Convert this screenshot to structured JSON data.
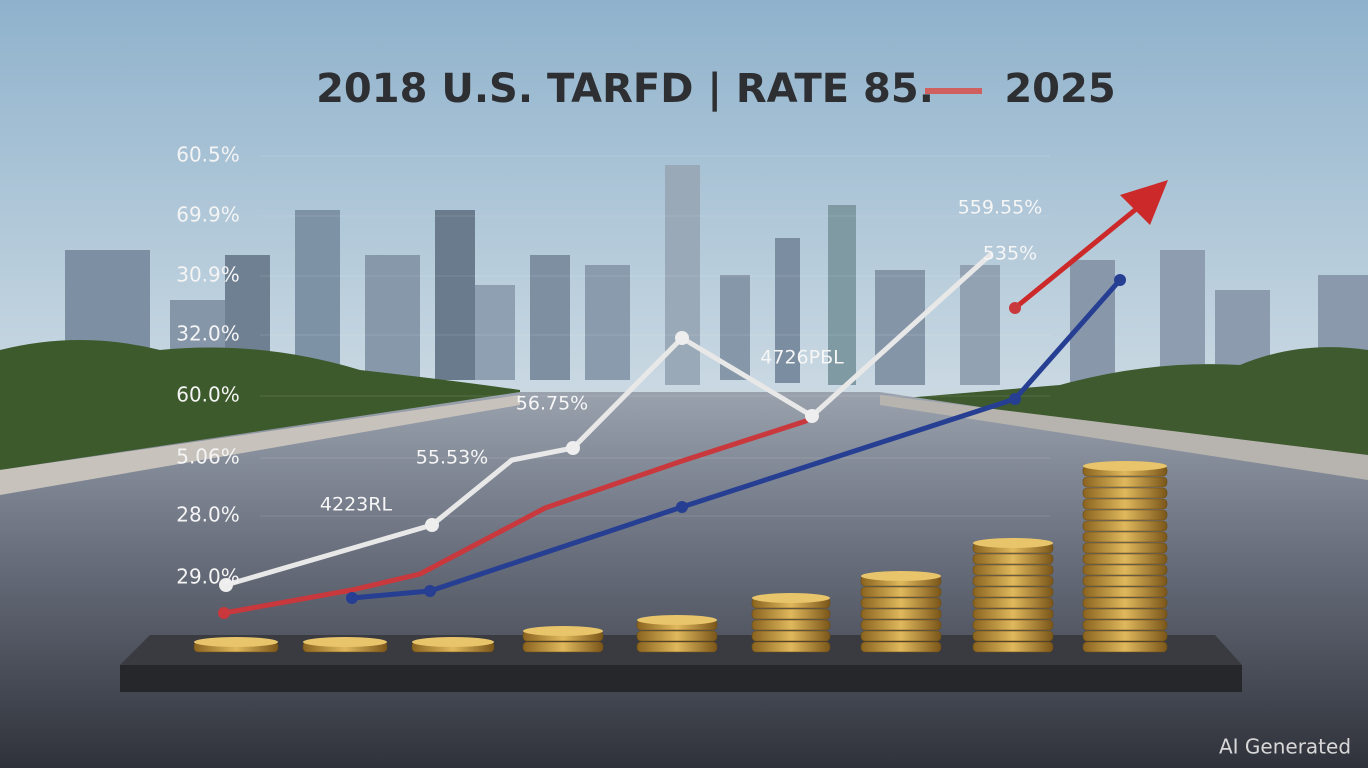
{
  "title": {
    "left": "2018 U.S. TARFD | RATE 85.",
    "right": "2025"
  },
  "axis_labels": [
    "60.5%",
    "69.9%",
    "30.9%",
    "32.0%",
    "60.0%",
    "5.06%",
    "28.0%",
    "29.0%"
  ],
  "annotations": [
    "4223RL",
    "55.53%",
    "56.75%",
    "4726PБL",
    "559.55%",
    "535%"
  ],
  "watermark": "AI Generated"
}
